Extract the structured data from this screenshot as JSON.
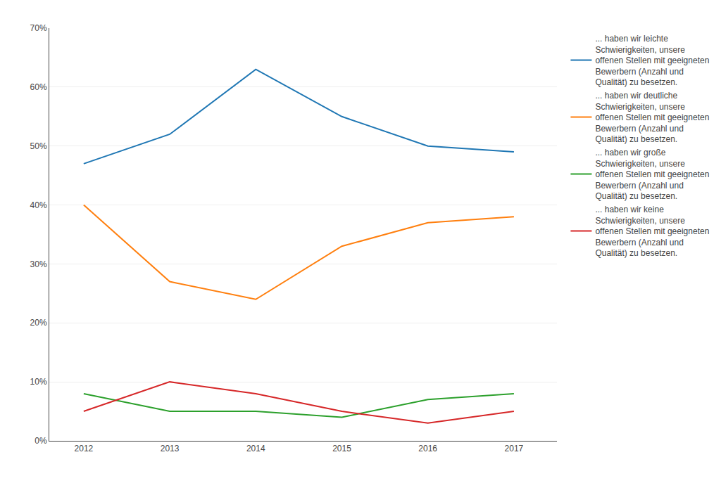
{
  "chart_data": {
    "type": "line",
    "x": [
      2012,
      2013,
      2014,
      2015,
      2016,
      2017
    ],
    "xlim": [
      2011.6,
      2017.5
    ],
    "xticks": [
      2012,
      2013,
      2014,
      2015,
      2016,
      2017
    ],
    "ylim": [
      0.0,
      0.7
    ],
    "yticks": [
      {
        "value": 0.0,
        "label": "0%"
      },
      {
        "value": 0.1,
        "label": "10%"
      },
      {
        "value": 0.2,
        "label": "20%"
      },
      {
        "value": 0.3,
        "label": "30%"
      },
      {
        "value": 0.4,
        "label": "40%"
      },
      {
        "value": 0.5,
        "label": "50%"
      },
      {
        "value": 0.6,
        "label": "60%"
      },
      {
        "value": 0.7,
        "label": "70%"
      }
    ],
    "grid": true,
    "legend": "right",
    "series": [
      {
        "name": "... haben wir leichte\nSchwierigkeiten, unsere\noffenen Stellen mit geeigneten\nBewerbern (Anzahl und\nQualität) zu besetzen.",
        "values": [
          0.47,
          0.52,
          0.63,
          0.55,
          0.5,
          0.49
        ]
      },
      {
        "name": "... haben wir deutliche\nSchwierigkeiten, unsere\noffenen Stellen mit geeigneten\nBewerbern (Anzahl und\nQualität) zu besetzen.",
        "values": [
          0.4,
          0.27,
          0.24,
          0.33,
          0.37,
          0.38
        ]
      },
      {
        "name": "... haben wir große\nSchwierigkeiten, unsere\noffenen Stellen mit geeigneten\nBewerbern (Anzahl und\nQualität) zu besetzen.",
        "values": [
          0.08,
          0.05,
          0.05,
          0.04,
          0.07,
          0.08
        ]
      },
      {
        "name": "... haben wir keine\nSchwierigkeiten, unsere\noffenen Stellen mit geeigneten\nBewerbern (Anzahl und\nQualität) zu besetzen.",
        "values": [
          0.05,
          0.1,
          0.08,
          0.05,
          0.03,
          0.05
        ]
      }
    ]
  }
}
